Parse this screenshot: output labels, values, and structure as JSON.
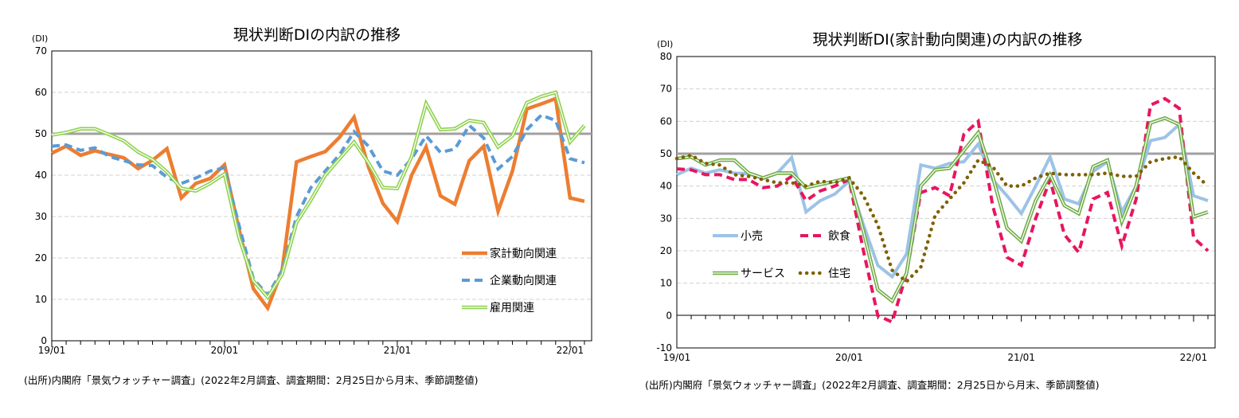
{
  "chart_data": [
    {
      "type": "line",
      "title": "現状判断DIの内訳の推移",
      "ylabel": "(DI)",
      "ylim": [
        0,
        70
      ],
      "yticks": [
        0,
        10,
        20,
        30,
        40,
        50,
        60,
        70
      ],
      "reference_line": 50,
      "x_tick_labels": [
        "19/01",
        "20/01",
        "21/01",
        "22/01"
      ],
      "x_range": [
        "2019-01",
        "2022-02"
      ],
      "grid": "horizontal dashed",
      "legend": "bottom-right",
      "source": "(出所)内閣府「景気ウォッチャー調査」(2022年2月調査、調査期間：2月25日から月末、季節調整値)",
      "series": [
        {
          "name": "家計動向関連",
          "color": "#ED7D31",
          "style": "solid",
          "values": [
            45.3,
            47,
            44.8,
            45.9,
            45,
            44.2,
            41.6,
            43.6,
            46.4,
            34.5,
            38,
            39.2,
            42.5,
            27,
            12.6,
            7.9,
            17,
            43.2,
            44.5,
            45.7,
            49.2,
            54,
            42,
            33.2,
            28.8,
            40,
            46.8,
            35,
            33,
            43.5,
            47,
            31.3,
            41,
            56,
            57.2,
            58.5,
            34.5,
            33.7
          ]
        },
        {
          "name": "企業動向関連",
          "color": "#5B9BD5",
          "style": "dashed",
          "values": [
            47,
            47.3,
            46,
            46.6,
            44.5,
            43.5,
            42.5,
            42.3,
            39.5,
            38,
            39.3,
            41,
            41.8,
            28,
            15,
            11,
            17,
            30,
            37,
            41,
            45,
            50.5,
            47,
            41,
            40,
            44,
            49.5,
            45.5,
            46.3,
            52,
            49,
            41.5,
            44.5,
            51,
            54.5,
            53.2,
            44,
            43
          ]
        },
        {
          "name": "雇用関連",
          "color": "#8FD14F",
          "style": "double",
          "values": [
            49.7,
            50.3,
            51.2,
            51.2,
            49.8,
            48.3,
            45.6,
            43.8,
            40.8,
            36.8,
            36.2,
            38,
            40.3,
            25,
            14.5,
            10.5,
            16,
            28.5,
            34,
            40,
            44,
            48,
            43,
            37,
            36.8,
            44.5,
            57.3,
            51,
            51.2,
            53.2,
            52.7,
            46.8,
            49.5,
            57.5,
            59,
            60,
            48,
            52
          ]
        }
      ]
    },
    {
      "type": "line",
      "title": "現状判断DI(家計動向関連)の内訳の推移",
      "ylabel": "(DI)",
      "ylim": [
        -10,
        80
      ],
      "yticks": [
        -10,
        0,
        10,
        20,
        30,
        40,
        50,
        60,
        70,
        80
      ],
      "reference_line": 50,
      "x_tick_labels": [
        "19/01",
        "20/01",
        "21/01",
        "22/01"
      ],
      "x_range": [
        "2019-01",
        "2022-02"
      ],
      "grid": "horizontal dashed",
      "legend": "bottom-left",
      "source": "(出所)内閣府「景気ウォッチャー調査」(2022年2月調査、調査期間：2月25日から月末、季節調整値)",
      "series": [
        {
          "name": "小売",
          "color": "#9DC3E6",
          "style": "solid",
          "values": [
            43.5,
            45.5,
            44,
            45,
            44,
            43.8,
            42.3,
            44,
            48.8,
            32,
            35.5,
            37.5,
            41.5,
            28,
            15.5,
            12,
            19,
            46.5,
            45.5,
            47,
            47.5,
            53,
            42,
            37,
            31.5,
            40,
            49,
            36,
            34.5,
            44.5,
            47.5,
            32,
            40,
            54,
            55,
            59,
            37,
            35.5
          ]
        },
        {
          "name": "飲食",
          "color": "#E8155F",
          "style": "dashed",
          "values": [
            45.3,
            45,
            43.5,
            43.5,
            42,
            42,
            39.5,
            40,
            43,
            35.5,
            38.5,
            40,
            42,
            20,
            0,
            -2,
            13,
            38,
            39.5,
            37,
            56,
            60,
            34,
            18,
            15.5,
            30,
            42,
            25,
            19.5,
            36,
            38,
            21.5,
            36,
            65,
            67,
            64,
            24,
            20
          ]
        },
        {
          "name": "サービス",
          "color": "#70AD47",
          "style": "double",
          "values": [
            48.5,
            49,
            46.5,
            48,
            48,
            44,
            42.5,
            44,
            44,
            39.5,
            40.5,
            41.5,
            42.5,
            26,
            8,
            4.5,
            13,
            40,
            45,
            45.5,
            51,
            56.5,
            43,
            27,
            23,
            35.5,
            43.5,
            34,
            31.5,
            46,
            48,
            29,
            40,
            59.5,
            61,
            59,
            30.5,
            32
          ]
        },
        {
          "name": "住宅",
          "color": "#7F6000",
          "style": "dotted",
          "values": [
            48.5,
            49.5,
            47,
            46.5,
            43.5,
            43,
            42,
            41,
            41,
            40,
            41.5,
            41,
            42.5,
            37,
            28,
            14,
            10.5,
            15,
            31,
            36,
            41,
            48,
            46,
            40,
            40,
            42.5,
            44,
            43.5,
            43.5,
            43.5,
            44,
            43,
            43,
            47.5,
            48.5,
            49,
            44,
            40
          ]
        }
      ]
    }
  ]
}
